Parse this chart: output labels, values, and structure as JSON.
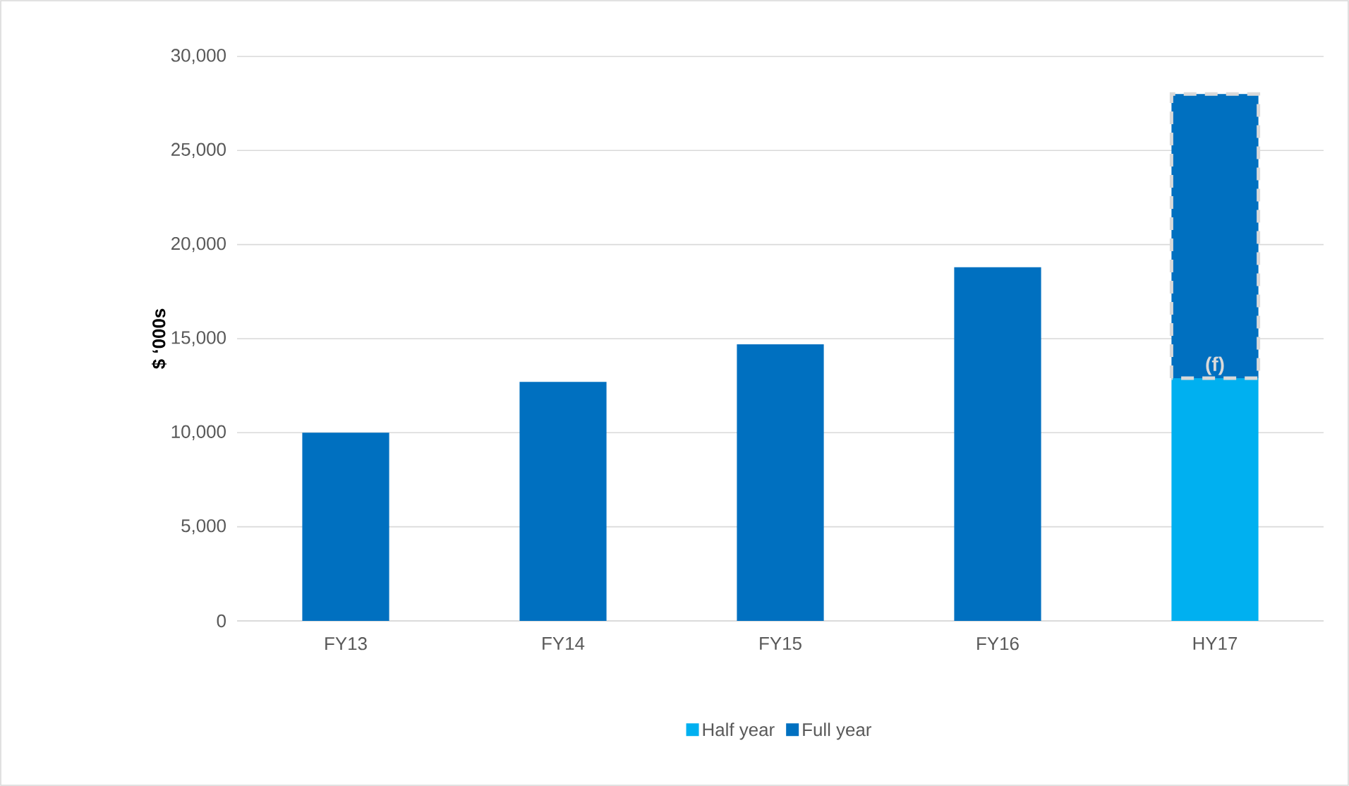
{
  "chart_data": {
    "type": "bar",
    "stacked": true,
    "ylabel": "$ ‘000s",
    "categories": [
      "FY13",
      "FY14",
      "FY15",
      "FY16",
      "HY17"
    ],
    "series": [
      {
        "name": "Half year",
        "color": "#00b0f0",
        "values": [
          null,
          null,
          null,
          null,
          12900
        ]
      },
      {
        "name": "Full year",
        "color": "#0070c0",
        "values": [
          10000,
          12700,
          14700,
          18800,
          15100
        ]
      }
    ],
    "ylim": [
      0,
      30000
    ],
    "yticks": [
      0,
      {
        "value": 5000,
        "label": "5,000"
      },
      {
        "value": 10000,
        "label": "10,000"
      },
      {
        "value": 15000,
        "label": "15,000"
      },
      {
        "value": 20000,
        "label": "20,000"
      },
      {
        "value": 25000,
        "label": "25,000"
      },
      {
        "value": 30000,
        "label": "30,000"
      }
    ],
    "annotations": [
      {
        "text": "(f)",
        "x": "HY17",
        "y": 12900
      }
    ],
    "grid": "y",
    "legend": "bottom"
  }
}
